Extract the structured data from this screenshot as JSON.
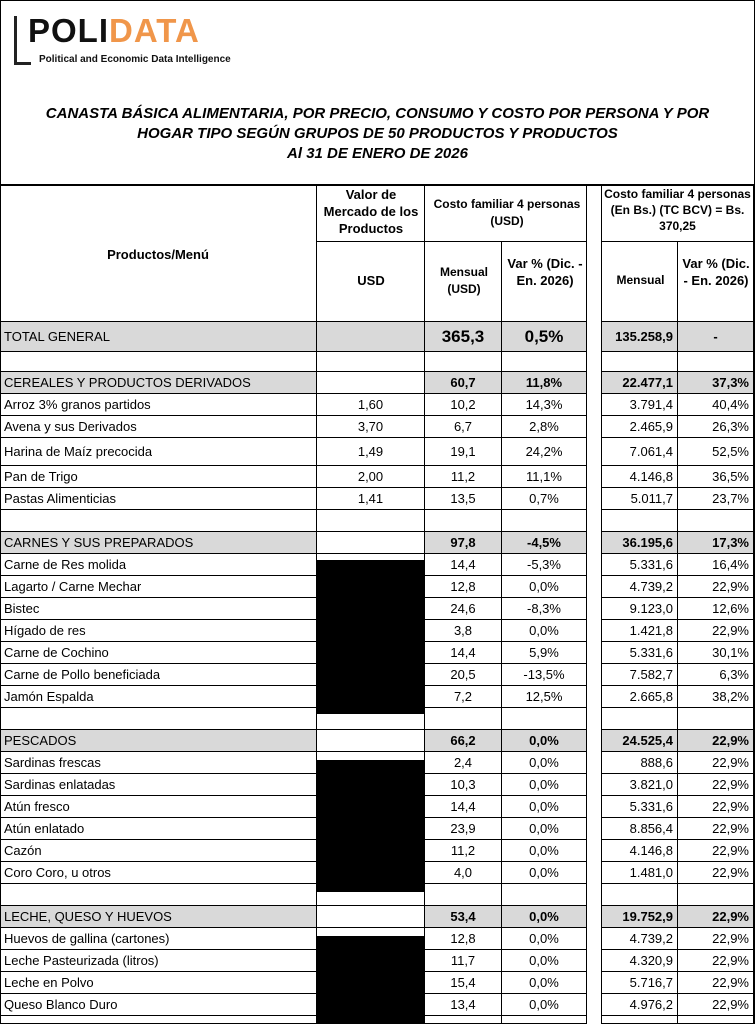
{
  "logo": {
    "part1": "POLI",
    "part2": "DATA",
    "tagline": "Political and Economic Data Intelligence"
  },
  "title": {
    "line1": "CANASTA BÁSICA ALIMENTARIA, POR PRECIO, CONSUMO Y COSTO POR PERSONA Y POR",
    "line2": "HOGAR TIPO SEGÚN GRUPOS DE 50 PRODUCTOS Y PRODUCTOS",
    "line3": "Al 31 DE ENERO DE 2026"
  },
  "header": {
    "productos": "Productos/Menú",
    "valor_mercado": "Valor de Mercado de los Productos",
    "usd": "USD",
    "costo_usd": "Costo familiar 4 personas (USD)",
    "mensual_usd": "Mensual (USD)",
    "var_usd": "Var % (Dic. - En. 2026)",
    "costo_bs": "Costo familiar 4 personas (En Bs.) (TC BCV) = Bs. 370,25",
    "mensual_bs": "Mensual",
    "var_bs": "Var % (Dic. - En. 2026)"
  },
  "total": {
    "name": "TOTAL GENERAL",
    "mensual_usd": "365,3",
    "var_usd": "0,5%",
    "mensual_bs": "135.258,9",
    "var_bs": "-"
  },
  "groups": {
    "cereales": {
      "name": "CEREALES Y PRODUCTOS DERIVADOS",
      "mensual_usd": "60,7",
      "var_usd": "11,8%",
      "mensual_bs": "22.477,1",
      "var_bs": "37,3%"
    },
    "carnes": {
      "name": "CARNES Y SUS PREPARADOS",
      "mensual_usd": "97,8",
      "var_usd": "-4,5%",
      "mensual_bs": "36.195,6",
      "var_bs": "17,3%"
    },
    "pescados": {
      "name": "PESCADOS",
      "mensual_usd": "66,2",
      "var_usd": "0,0%",
      "mensual_bs": "24.525,4",
      "var_bs": "22,9%"
    },
    "leche": {
      "name": "LECHE, QUESO Y HUEVOS",
      "mensual_usd": "53,4",
      "var_usd": "0,0%",
      "mensual_bs": "19.752,9",
      "var_bs": "22,9%"
    }
  },
  "items": {
    "cereales": [
      {
        "name": "Arroz 3% granos partidos",
        "usd": "1,60",
        "mensual_usd": "10,2",
        "var_usd": "14,3%",
        "mensual_bs": "3.791,4",
        "var_bs": "40,4%"
      },
      {
        "name": "Avena y sus Derivados",
        "usd": "3,70",
        "mensual_usd": "6,7",
        "var_usd": "2,8%",
        "mensual_bs": "2.465,9",
        "var_bs": "26,3%"
      },
      {
        "name": "Harina de Maíz precocida",
        "usd": "1,49",
        "mensual_usd": "19,1",
        "var_usd": "24,2%",
        "mensual_bs": "7.061,4",
        "var_bs": "52,5%"
      },
      {
        "name": "Pan de Trigo",
        "usd": "2,00",
        "mensual_usd": "11,2",
        "var_usd": "11,1%",
        "mensual_bs": "4.146,8",
        "var_bs": "36,5%"
      },
      {
        "name": "Pastas Alimenticias",
        "usd": "1,41",
        "mensual_usd": "13,5",
        "var_usd": "0,7%",
        "mensual_bs": "5.011,7",
        "var_bs": "23,7%"
      }
    ],
    "carnes": [
      {
        "name": "Carne de Res molida",
        "mensual_usd": "14,4",
        "var_usd": "-5,3%",
        "mensual_bs": "5.331,6",
        "var_bs": "16,4%"
      },
      {
        "name": "Lagarto / Carne Mechar",
        "mensual_usd": "12,8",
        "var_usd": "0,0%",
        "mensual_bs": "4.739,2",
        "var_bs": "22,9%"
      },
      {
        "name": "Bistec",
        "mensual_usd": "24,6",
        "var_usd": "-8,3%",
        "mensual_bs": "9.123,0",
        "var_bs": "12,6%"
      },
      {
        "name": "Hígado de res",
        "mensual_usd": "3,8",
        "var_usd": "0,0%",
        "mensual_bs": "1.421,8",
        "var_bs": "22,9%"
      },
      {
        "name": "Carne de Cochino",
        "mensual_usd": "14,4",
        "var_usd": "5,9%",
        "mensual_bs": "5.331,6",
        "var_bs": "30,1%"
      },
      {
        "name": "Carne de Pollo beneficiada",
        "mensual_usd": "20,5",
        "var_usd": "-13,5%",
        "mensual_bs": "7.582,7",
        "var_bs": "6,3%"
      },
      {
        "name": "Jamón Espalda",
        "mensual_usd": "7,2",
        "var_usd": "12,5%",
        "mensual_bs": "2.665,8",
        "var_bs": "38,2%"
      }
    ],
    "pescados": [
      {
        "name": "Sardinas frescas",
        "mensual_usd": "2,4",
        "var_usd": "0,0%",
        "mensual_bs": "888,6",
        "var_bs": "22,9%"
      },
      {
        "name": "Sardinas enlatadas",
        "mensual_usd": "10,3",
        "var_usd": "0,0%",
        "mensual_bs": "3.821,0",
        "var_bs": "22,9%"
      },
      {
        "name": "Atún fresco",
        "mensual_usd": "14,4",
        "var_usd": "0,0%",
        "mensual_bs": "5.331,6",
        "var_bs": "22,9%"
      },
      {
        "name": "Atún enlatado",
        "mensual_usd": "23,9",
        "var_usd": "0,0%",
        "mensual_bs": "8.856,4",
        "var_bs": "22,9%"
      },
      {
        "name": "Cazón",
        "mensual_usd": "11,2",
        "var_usd": "0,0%",
        "mensual_bs": "4.146,8",
        "var_bs": "22,9%"
      },
      {
        "name": "Coro Coro, u otros",
        "mensual_usd": "4,0",
        "var_usd": "0,0%",
        "mensual_bs": "1.481,0",
        "var_bs": "22,9%"
      }
    ],
    "leche": [
      {
        "name": "Huevos de gallina (cartones)",
        "mensual_usd": "12,8",
        "var_usd": "0,0%",
        "mensual_bs": "4.739,2",
        "var_bs": "22,9%"
      },
      {
        "name": "Leche Pasteurizada (litros)",
        "mensual_usd": "11,7",
        "var_usd": "0,0%",
        "mensual_bs": "4.320,9",
        "var_bs": "22,9%"
      },
      {
        "name": "Leche en Polvo",
        "mensual_usd": "15,4",
        "var_usd": "0,0%",
        "mensual_bs": "5.716,7",
        "var_bs": "22,9%"
      },
      {
        "name": "Queso Blanco Duro",
        "mensual_usd": "13,4",
        "var_usd": "0,0%",
        "mensual_bs": "4.976,2",
        "var_bs": "22,9%"
      }
    ]
  }
}
